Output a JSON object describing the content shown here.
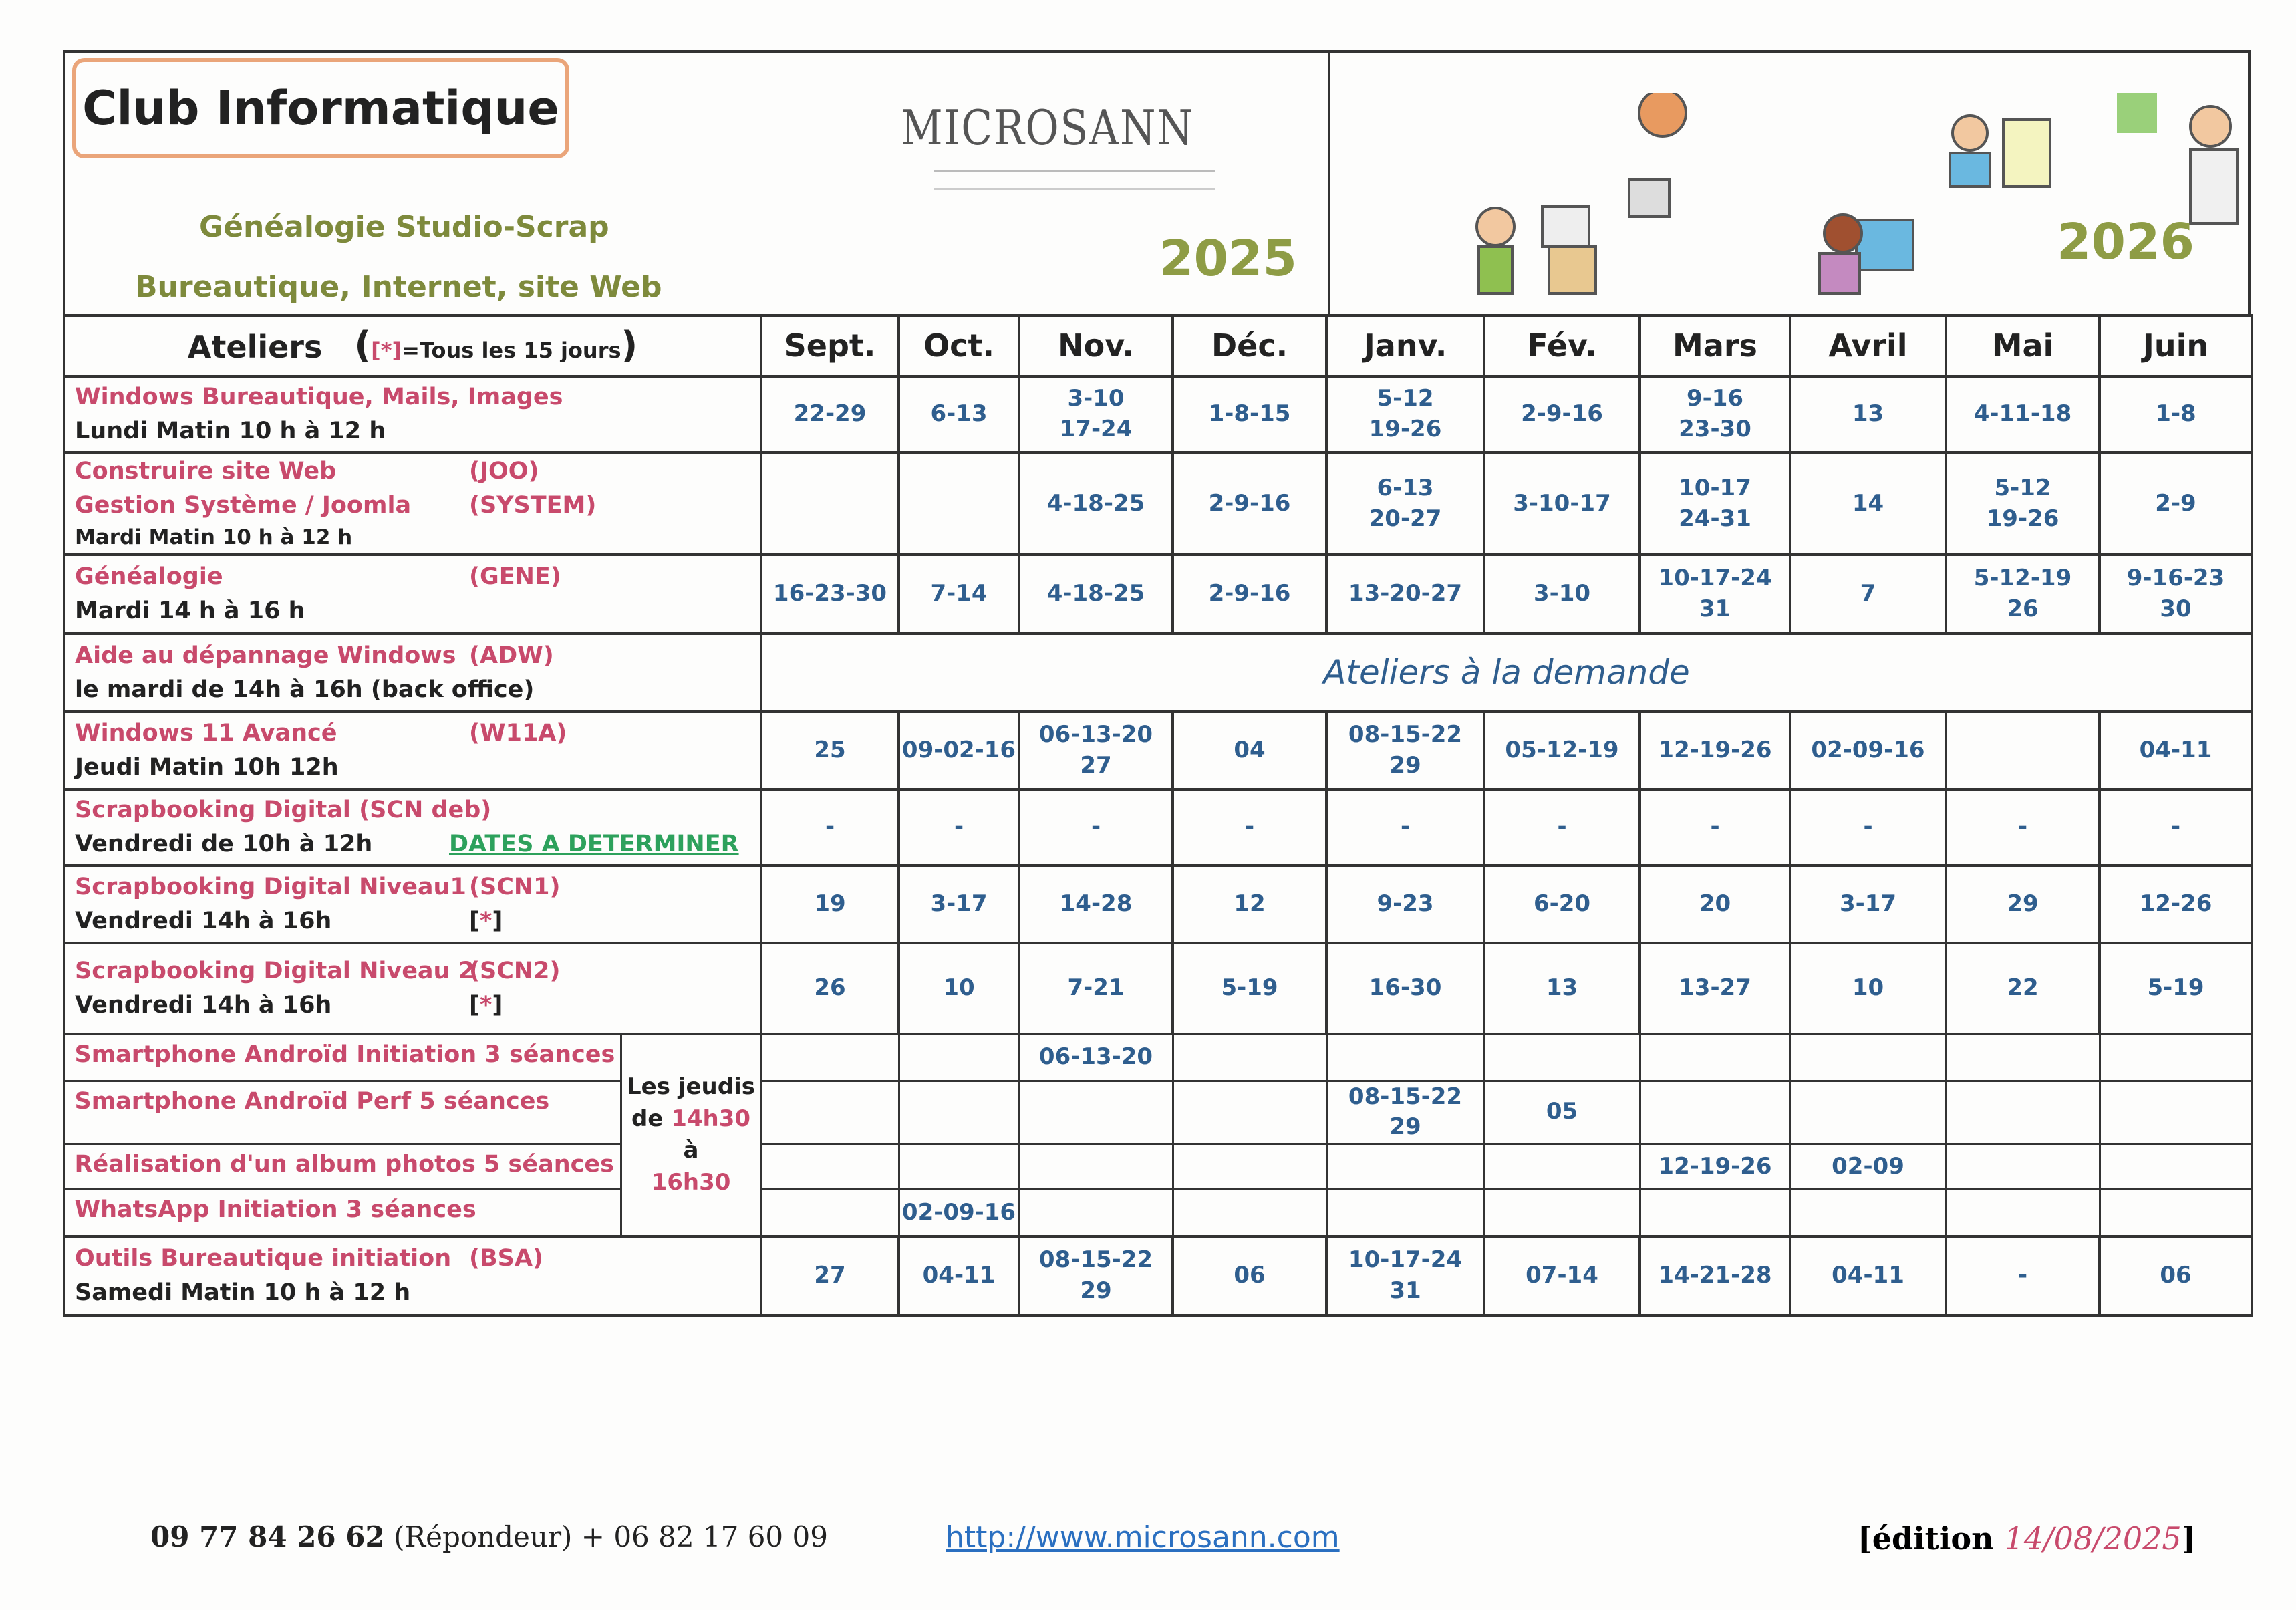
{
  "header": {
    "title": "Club Informatique",
    "subtitle_1": "Généalogie Studio-Scrap",
    "subtitle_2": "Bureautique, Internet, site Web",
    "logo": "MICROSANN",
    "year_left": "2025",
    "year_right": "2026"
  },
  "table": {
    "col_ateliers": "Ateliers",
    "col_note_open": "(",
    "col_note_star": "[*]",
    "col_note_text": "=Tous les 15 jours",
    "col_note_close": ")",
    "months": [
      "Sept.",
      "Oct.",
      "Nov.",
      "Déc.",
      "Janv.",
      "Fév.",
      "Mars",
      "Avril",
      "Mai",
      "Juin"
    ],
    "rows": [
      {
        "title": "Windows Bureautique, Mails, Images",
        "code": "",
        "schedule": "Lundi Matin 10 h à 12 h",
        "cells": [
          "22-29",
          "6-13",
          "3-10\n17-24",
          "1-8-15",
          "5-12\n19-26",
          "2-9-16",
          "9-16\n23-30",
          "13",
          "4-11-18",
          "1-8"
        ]
      },
      {
        "title": "Construire site Web",
        "code": "(JOO)",
        "title2": "Gestion Système / Joomla",
        "code2": "(SYSTEM)",
        "schedule": "Mardi Matin 10 h à 12 h",
        "cells": [
          "",
          "",
          "4-18-25",
          "2-9-16",
          "6-13\n20-27",
          "3-10-17",
          "10-17\n24-31",
          "14",
          "5-12\n19-26",
          "2-9"
        ]
      },
      {
        "title": "Généalogie",
        "code": "(GENE)",
        "schedule": "Mardi 14 h à 16 h",
        "cells": [
          "16-23-30",
          "7-14",
          "4-18-25",
          "2-9-16",
          "13-20-27",
          "3-10",
          "10-17-24\n31",
          "7",
          "5-12-19\n26",
          "9-16-23\n30"
        ]
      },
      {
        "title": "Aide au dépannage Windows",
        "code": "(ADW)",
        "schedule": "le mardi de 14h à 16h (back office)",
        "span_text": "Ateliers à la demande"
      },
      {
        "title": "Windows 11 Avancé",
        "code": "(W11A)",
        "schedule": "Jeudi Matin 10h 12h",
        "cells": [
          "25",
          "09-02-16",
          "06-13-20\n27",
          "04",
          "08-15-22\n29",
          "05-12-19",
          "12-19-26",
          "02-09-16",
          "",
          "04-11"
        ]
      },
      {
        "title": "Scrapbooking Digital (SCN deb)",
        "code": "",
        "schedule": "Vendredi de 10h à 12h",
        "note": "DATES A DETERMINER",
        "cells": [
          "-",
          "-",
          "-",
          "-",
          "-",
          "-",
          "-",
          "-",
          "-",
          "-"
        ]
      },
      {
        "title": "Scrapbooking Digital Niveau1",
        "code": "(SCN1)",
        "schedule": "Vendredi 14h à 16h",
        "star": "[*]",
        "cells": [
          "19",
          "3-17",
          "14-28",
          "12",
          "9-23",
          "6-20",
          "20",
          "3-17",
          "29",
          "12-26"
        ]
      },
      {
        "title": "Scrapbooking Digital Niveau 2",
        "code": "(SCN2)",
        "schedule": "Vendredi 14h à 16h",
        "star": "[*]",
        "cells": [
          "26",
          "10",
          "7-21",
          "5-19",
          "16-30",
          "13",
          "13-27",
          "10",
          "22",
          "5-19"
        ]
      }
    ],
    "thursday_group": {
      "note_1": "Les jeudis",
      "note_2a": "de ",
      "note_2b": "14h30",
      "note_2c": " à",
      "note_3": "16h30",
      "rows": [
        {
          "title": "Smartphone Androïd Initiation 3 séances",
          "cells": [
            "",
            "",
            "06-13-20",
            "",
            "",
            "",
            "",
            "",
            "",
            ""
          ]
        },
        {
          "title": "Smartphone Androïd Perf 5 séances",
          "cells": [
            "",
            "",
            "",
            "",
            "08-15-22\n29",
            "05",
            "",
            "",
            "",
            ""
          ]
        },
        {
          "title": "Réalisation d'un album photos 5 séances",
          "cells": [
            "",
            "",
            "",
            "",
            "",
            "",
            "12-19-26",
            "02-09",
            "",
            ""
          ]
        },
        {
          "title": "WhatsApp Initiation 3 séances",
          "cells": [
            "",
            "02-09-16",
            "",
            "",
            "",
            "",
            "",
            "",
            "",
            ""
          ]
        }
      ]
    },
    "last_row": {
      "title": "Outils Bureautique initiation",
      "code": "(BSA)",
      "schedule": "Samedi Matin 10 h à 12 h",
      "cells": [
        "27",
        "04-11",
        "08-15-22\n29",
        "06",
        "10-17-24\n31",
        "07-14",
        "14-21-28",
        "04-11",
        "-",
        "06"
      ]
    }
  },
  "footer": {
    "phone": "09 77 84 26 62",
    "phone_note": " (Répondeur) + 06 82 17 60 09",
    "link": "http://www.microsann.com",
    "edition_open": "[édition ",
    "edition_date": "14/08/2025",
    "edition_close": "]"
  },
  "colors": {
    "title_red": "#c84a6c",
    "dates_blue": "#2f5e8e",
    "year_olive": "#8e9c45",
    "note_green": "#2da15c",
    "title_border": "#eaa57a"
  }
}
